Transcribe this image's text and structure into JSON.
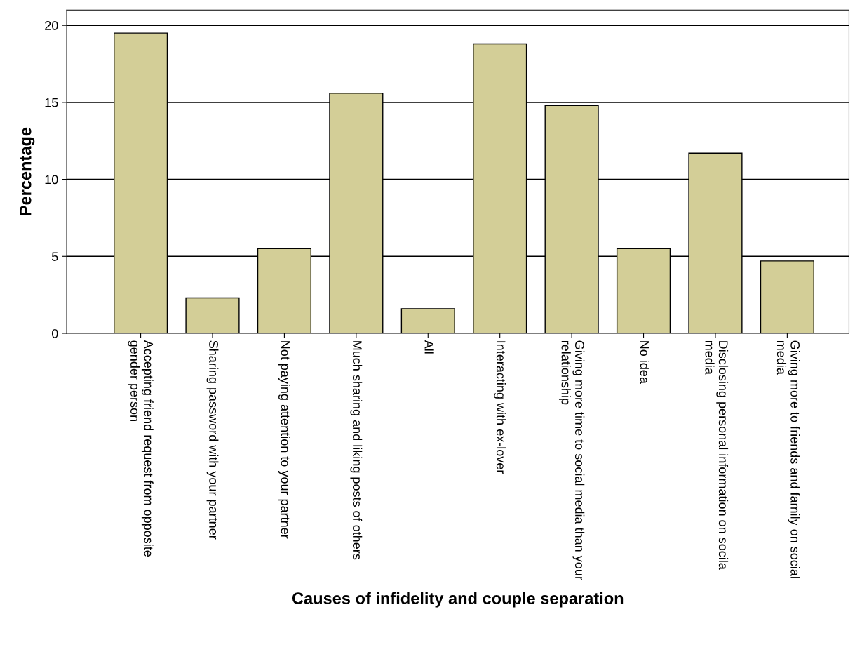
{
  "chart_data": {
    "type": "bar",
    "xlabel": "Causes of infidelity and couple separation",
    "ylabel": "Percentage",
    "categories": [
      "Accepting friend request from opposite\ngender person",
      "Sharing password with your partner",
      "Not paying attention to your partner",
      "Much sharing and liking posts of others",
      "All",
      "Interacting with ex-lover",
      "Giving more time to social media than your\nrelationship",
      "No idea",
      "Disclosing personal information on socila\nmedia",
      "Giving more to friends and family on social\nmedia"
    ],
    "values": [
      19.5,
      2.3,
      5.5,
      15.6,
      1.6,
      18.8,
      14.8,
      5.5,
      11.7,
      4.7
    ],
    "color": "#d3ce97",
    "ylim": [
      0,
      21
    ],
    "yticks": [
      0,
      5,
      10,
      15,
      20
    ],
    "grid": "y"
  }
}
